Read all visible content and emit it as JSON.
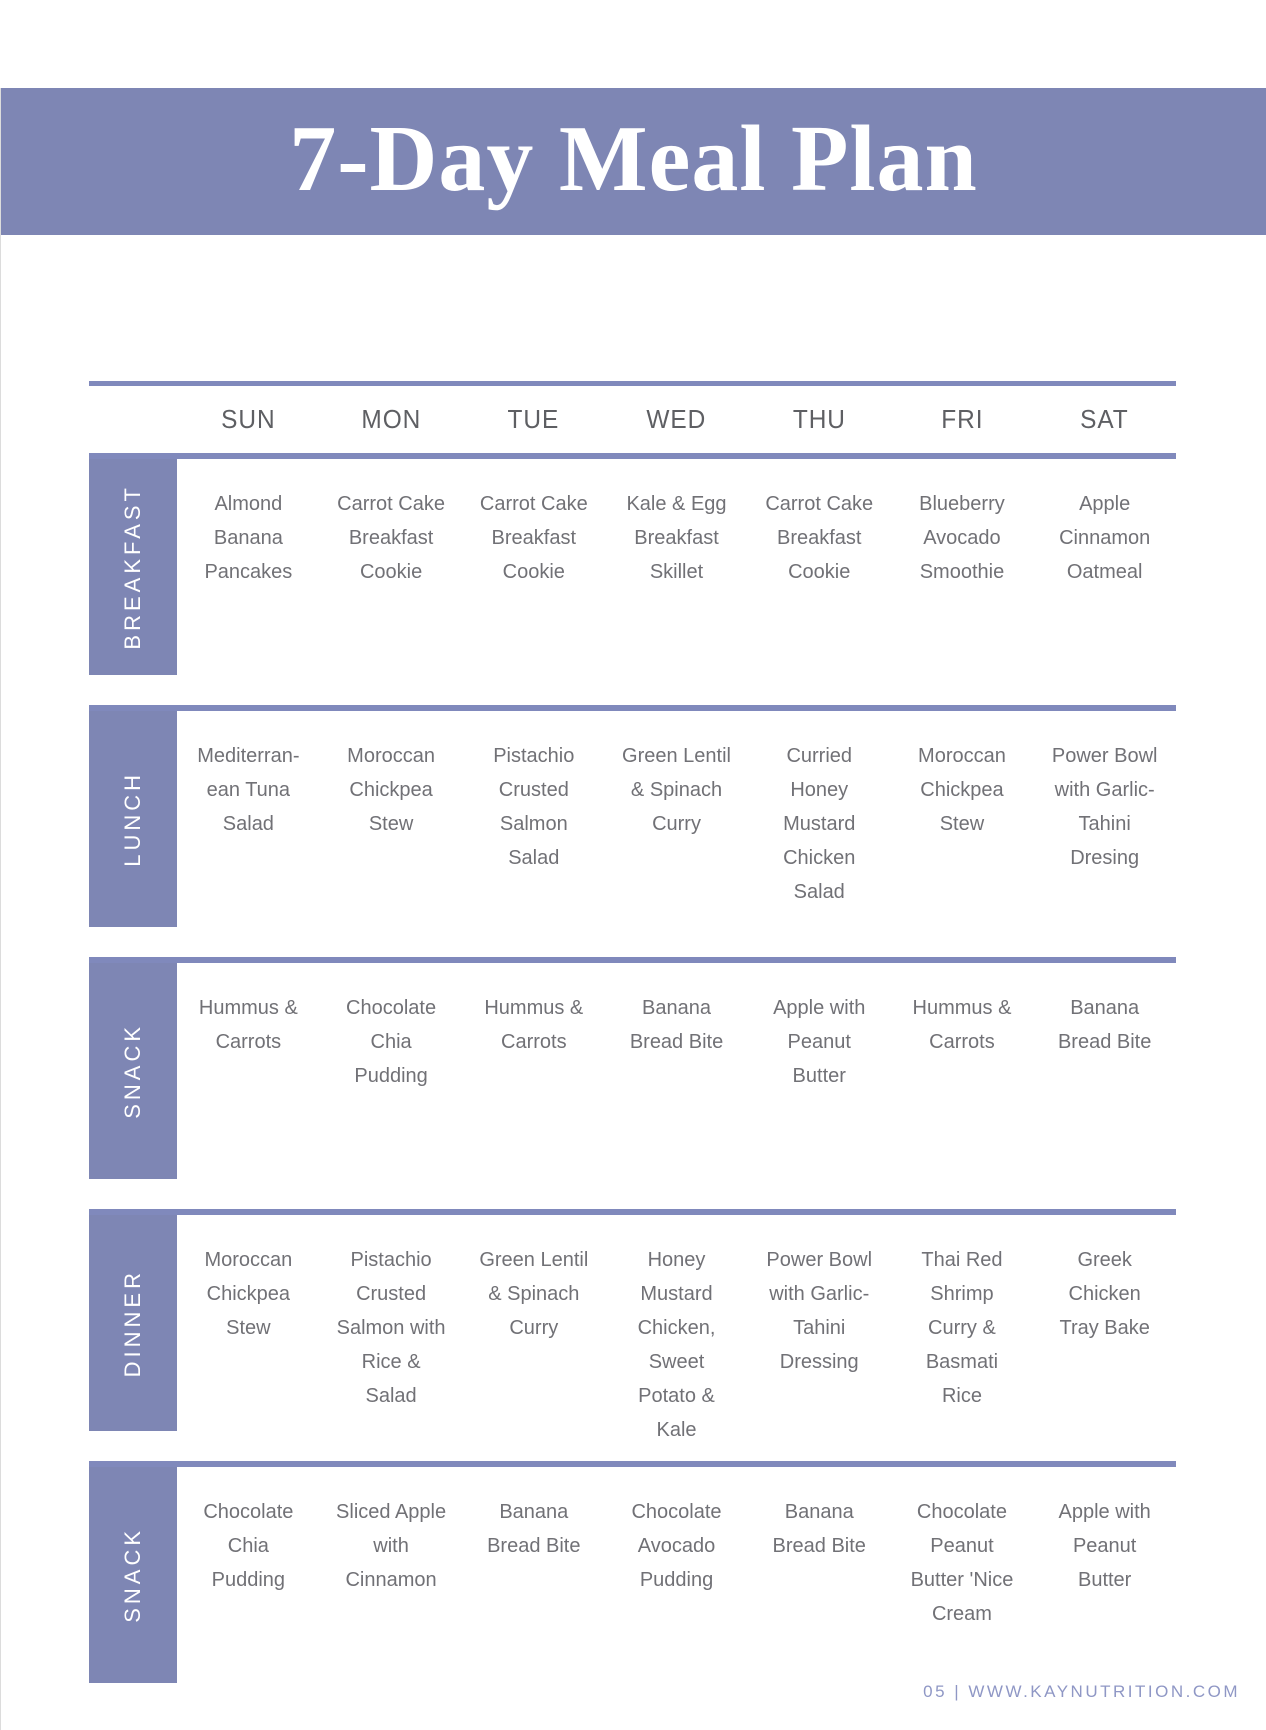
{
  "header": {
    "title": "7-Day Meal Plan"
  },
  "footer": {
    "text": "05 | WWW.KAYNUTRITION.COM"
  },
  "colors": {
    "accent": "#7E86B4",
    "line": "#8089BC",
    "cell_text": "#717176",
    "day_text": "#5E5F63",
    "footer_text": "#8F97C5"
  },
  "table": {
    "days": [
      "SUN",
      "MON",
      "TUE",
      "WED",
      "THU",
      "FRI",
      "SAT"
    ],
    "rows": [
      {
        "label": "BREAKFAST",
        "cells": [
          "Almond Banana Pancakes",
          "Carrot Cake Breakfast Cookie",
          "Carrot Cake Breakfast Cookie",
          "Kale & Egg Breakfast Skillet",
          "Carrot Cake Breakfast Cookie",
          "Blueberry Avocado Smoothie",
          "Apple Cinnamon Oatmeal"
        ]
      },
      {
        "label": "LUNCH",
        "cells": [
          "Mediterran-ean Tuna Salad",
          "Moroccan Chickpea Stew",
          "Pistachio Crusted Salmon Salad",
          "Green Lentil & Spinach Curry",
          "Curried Honey Mustard Chicken Salad",
          "Moroccan Chickpea Stew",
          "Power Bowl with Garlic-Tahini Dresing"
        ]
      },
      {
        "label": "SNACK",
        "cells": [
          "Hummus & Carrots",
          "Chocolate Chia Pudding",
          "Hummus & Carrots",
          "Banana Bread Bite",
          "Apple with Peanut Butter",
          "Hummus & Carrots",
          "Banana Bread Bite"
        ]
      },
      {
        "label": "DINNER",
        "cells": [
          "Moroccan Chickpea Stew",
          "Pistachio Crusted Salmon with Rice & Salad",
          "Green Lentil & Spinach Curry",
          "Honey Mustard Chicken, Sweet Potato & Kale",
          "Power Bowl with Garlic-Tahini Dressing",
          "Thai Red Shrimp Curry & Basmati Rice",
          "Greek Chicken Tray Bake"
        ]
      },
      {
        "label": "SNACK",
        "cells": [
          "Chocolate Chia Pudding",
          "Sliced Apple with Cinnamon",
          "Banana Bread Bite",
          "Chocolate Avocado Pudding",
          "Banana Bread Bite",
          "Chocolate Peanut Butter 'Nice Cream",
          "Apple with Peanut Butter"
        ]
      }
    ]
  }
}
